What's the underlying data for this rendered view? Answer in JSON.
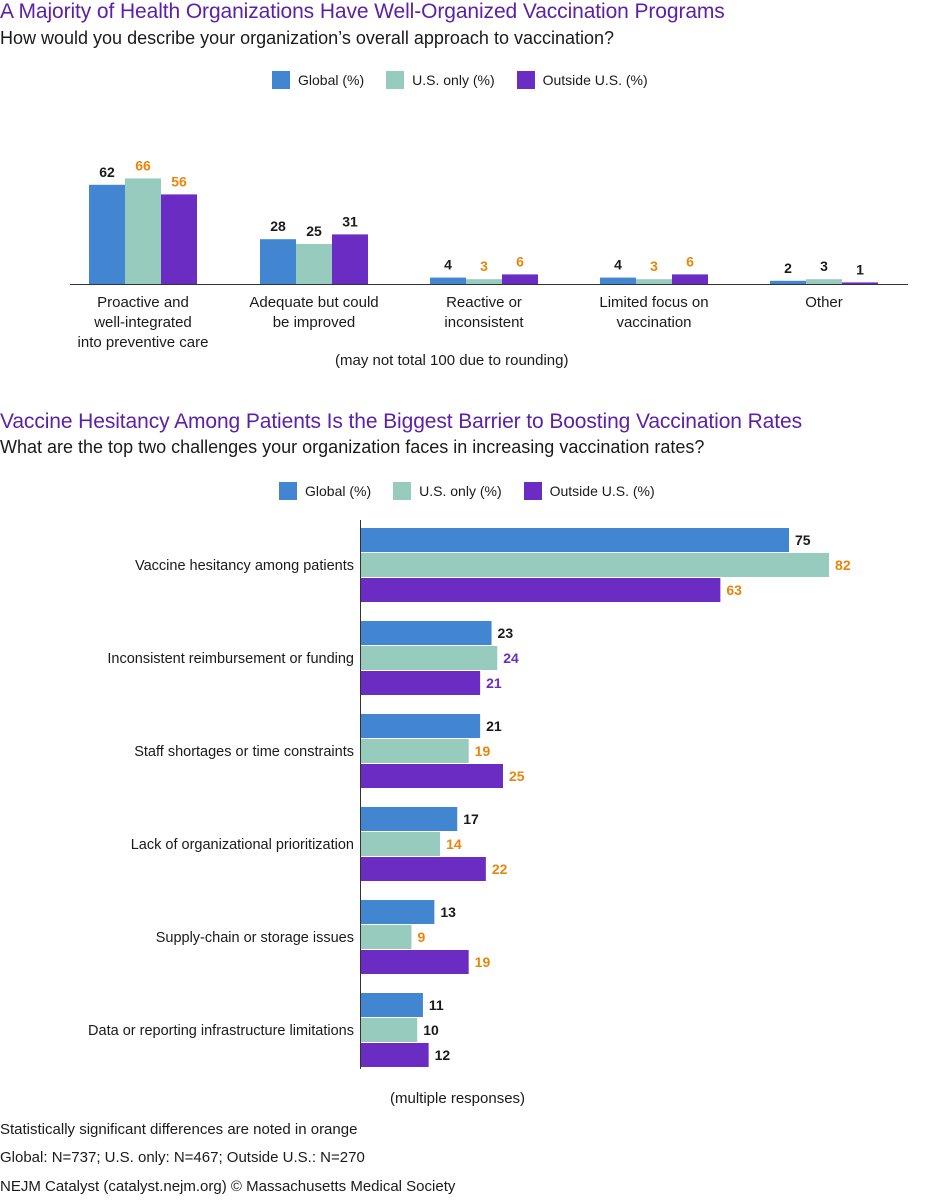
{
  "colors": {
    "global": "#4285d0",
    "us_only": "#96cbbd",
    "outside_us": "#6a2cc2",
    "significant": "#e8850c",
    "normal_label": "#1a1a1a",
    "title": "#5b1fa8"
  },
  "chart_data": [
    {
      "type": "bar",
      "orientation": "vertical",
      "title": "A Majority of Health Organizations Have Well-Organized Vaccination Programs",
      "subtitle": "How would you describe your organization’s overall approach to vaccination?",
      "note": "(may not total 100 due to rounding)",
      "legend": [
        "Global (%)",
        "U.S. only (%)",
        "Outside U.S. (%)"
      ],
      "categories": [
        [
          "Proactive and",
          "well-integrated",
          "into preventive care"
        ],
        [
          "Adequate but could",
          "be improved"
        ],
        [
          "Reactive or",
          "inconsistent"
        ],
        [
          "Limited focus on",
          "vaccination"
        ],
        [
          "Other"
        ]
      ],
      "series": [
        {
          "name": "Global (%)",
          "values": [
            62,
            28,
            4,
            4,
            2
          ],
          "significant": [
            false,
            false,
            false,
            false,
            false
          ]
        },
        {
          "name": "U.S. only (%)",
          "values": [
            66,
            25,
            3,
            3,
            3
          ],
          "significant": [
            true,
            false,
            true,
            true,
            false
          ]
        },
        {
          "name": "Outside U.S. (%)",
          "values": [
            56,
            31,
            6,
            6,
            1
          ],
          "significant": [
            true,
            false,
            true,
            true,
            false
          ]
        }
      ],
      "ylim": [
        0,
        70
      ],
      "grid": false
    },
    {
      "type": "bar",
      "orientation": "horizontal",
      "title": "Vaccine Hesitancy Among Patients Is the Biggest Barrier to Boosting Vaccination Rates",
      "subtitle": "What are the top two challenges your organization faces in increasing vaccination rates?",
      "note": "(multiple responses)",
      "legend": [
        "Global (%)",
        "U.S. only (%)",
        "Outside U.S. (%)"
      ],
      "categories": [
        "Vaccine hesitancy among patients",
        "Inconsistent reimbursement or funding",
        "Staff shortages or time constraints",
        "Lack of organizational prioritization",
        "Supply-chain or storage issues",
        "Data or reporting infrastructure limitations"
      ],
      "series": [
        {
          "name": "Global (%)",
          "values": [
            75,
            23,
            21,
            17,
            13,
            11
          ],
          "label_colors": [
            "normal",
            "normal",
            "normal",
            "normal",
            "normal",
            "normal"
          ]
        },
        {
          "name": "U.S. only (%)",
          "values": [
            82,
            24,
            19,
            14,
            9,
            10
          ],
          "label_colors": [
            "significant",
            "outside",
            "significant",
            "significant",
            "significant",
            "normal"
          ]
        },
        {
          "name": "Outside U.S. (%)",
          "values": [
            63,
            21,
            25,
            22,
            19,
            12
          ],
          "label_colors": [
            "significant",
            "outside",
            "significant",
            "significant",
            "significant",
            "normal"
          ]
        }
      ],
      "xlim": [
        0,
        100
      ],
      "grid": false
    }
  ],
  "footer": {
    "significance_note": "Statistically significant differences are noted in orange",
    "sample_sizes": "Global: N=737; U.S. only: N=467; Outside U.S.: N=270",
    "source": "NEJM Catalyst (catalyst.nejm.org) © Massachusetts Medical Society"
  }
}
